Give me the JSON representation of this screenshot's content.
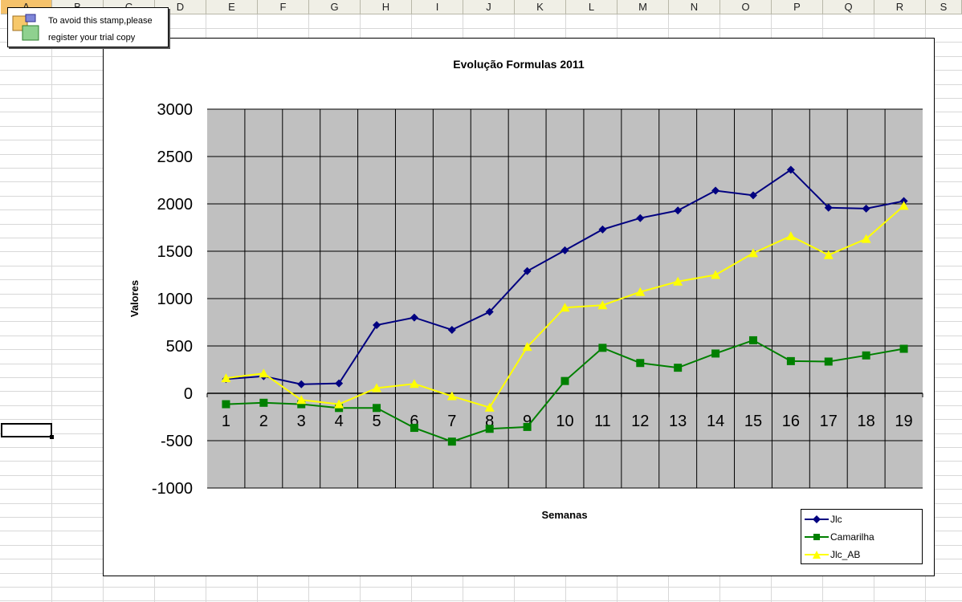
{
  "spreadsheet": {
    "columns": [
      "A",
      "B",
      "C",
      "D",
      "E",
      "F",
      "G",
      "H",
      "I",
      "J",
      "K",
      "L",
      "M",
      "N",
      "O",
      "P",
      "Q",
      "R",
      "S"
    ],
    "selected_column": "A"
  },
  "stamp": {
    "line1": "To avoid this stamp,please",
    "line2": "register your trial copy"
  },
  "colors": {
    "plot_bg": "#c0c0c0",
    "Jlc": "#000080",
    "Camarilha": "#008000",
    "Jlc_AB": "#ffff00"
  },
  "chart_data": {
    "type": "line",
    "title": "Evolução Formulas 2011",
    "xlabel": "Semanas",
    "ylabel": "Valores",
    "categories": [
      "1",
      "2",
      "3",
      "4",
      "5",
      "6",
      "7",
      "8",
      "9",
      "10",
      "11",
      "12",
      "13",
      "14",
      "15",
      "16",
      "17",
      "18",
      "19"
    ],
    "ylim": [
      -1000,
      3000
    ],
    "yticks": [
      "3000",
      "2500",
      "2000",
      "1500",
      "1000",
      "500",
      "0",
      "-500",
      "-1000"
    ],
    "grid": true,
    "legend_position": "bottom-right",
    "series": [
      {
        "name": "Jlc",
        "marker": "diamond",
        "color": "#000080",
        "values": [
          150,
          180,
          95,
          105,
          720,
          800,
          670,
          860,
          1290,
          1510,
          1730,
          1850,
          1930,
          2140,
          2090,
          2360,
          1960,
          1950,
          2030
        ]
      },
      {
        "name": "Camarilha",
        "marker": "square",
        "color": "#008000",
        "values": [
          -115,
          -100,
          -115,
          -155,
          -155,
          -365,
          -510,
          -375,
          -355,
          130,
          480,
          320,
          270,
          420,
          560,
          340,
          335,
          400,
          470
        ]
      },
      {
        "name": "Jlc_AB",
        "marker": "triangle",
        "color": "#ffff00",
        "values": [
          160,
          210,
          -70,
          -115,
          55,
          100,
          -30,
          -150,
          490,
          905,
          930,
          1070,
          1180,
          1250,
          1480,
          1660,
          1460,
          1630,
          1980
        ]
      }
    ]
  }
}
